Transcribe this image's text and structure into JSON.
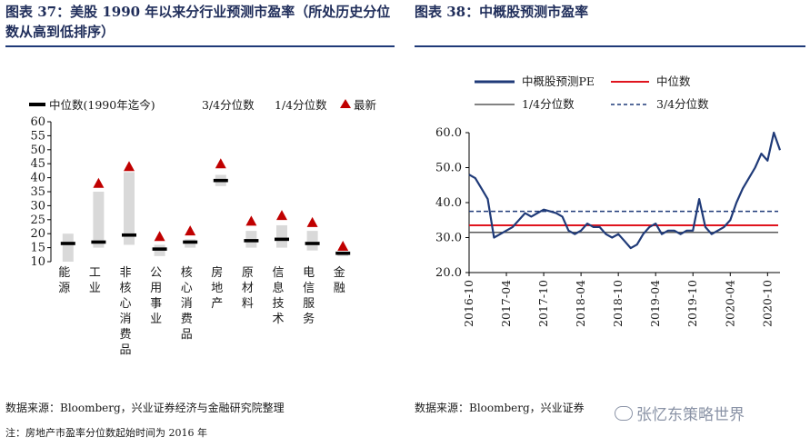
{
  "titles": {
    "left": "图表 37：美股 1990 年以来分行业预测市盈率（所处历史分位数从高到低排序）",
    "right": "图表 38：中概股预测市盈率"
  },
  "sources": {
    "left": "数据来源：Bloomberg，兴业证券经济与金融研究院整理",
    "right": "数据来源：Bloomberg，兴业证券",
    "note": "注：房地产市盈率分位数起始时间为 2016 年",
    "watermark": "张忆东策略世界"
  },
  "colors": {
    "navy": "#1f3a78",
    "red": "#e0141e",
    "gray_band": "#d9d9d9",
    "median_mark": "#000000"
  },
  "chart_data": [
    {
      "type": "bar",
      "subtype": "range-band",
      "legend": {
        "median": "中位数(1990年迄今)",
        "p75": "3/4分位数",
        "p25": "1/4分位数",
        "latest": "最新"
      },
      "legend_position": "top",
      "ylim": [
        10,
        60
      ],
      "yticks": [
        10,
        15,
        20,
        25,
        30,
        35,
        40,
        45,
        50,
        55,
        60
      ],
      "categories": [
        "能源",
        "工业",
        "非核心消费品",
        "公用事业",
        "核心消费品",
        "房地产",
        "原材料",
        "信息技术",
        "电信服务",
        "金融"
      ],
      "p25": [
        10,
        15,
        16,
        12,
        15,
        37,
        15,
        15,
        14,
        12
      ],
      "p75": [
        20,
        35,
        42,
        16,
        18,
        41,
        21,
        23,
        21,
        13
      ],
      "median": [
        16.5,
        17,
        19.5,
        14.5,
        17,
        39,
        17.5,
        18,
        16.5,
        13
      ],
      "latest": [
        null,
        38,
        44,
        19,
        21,
        45,
        24.5,
        26.5,
        24,
        15.5
      ]
    },
    {
      "type": "line",
      "legend_position": "top",
      "ylim": [
        20,
        60
      ],
      "yticks": [
        "20.0",
        "30.0",
        "40.0",
        "50.0",
        "60.0"
      ],
      "x_ticks": [
        "2016-10",
        "2017-04",
        "2017-10",
        "2018-04",
        "2018-10",
        "2019-04",
        "2019-10",
        "2020-04",
        "2020-10"
      ],
      "series": [
        {
          "name": "中概股预测PE",
          "color": "#1f3a78",
          "style": "solid",
          "points": [
            [
              "2016-10",
              48
            ],
            [
              "2016-11",
              47
            ],
            [
              "2016-12",
              44
            ],
            [
              "2017-01",
              41
            ],
            [
              "2017-02",
              30
            ],
            [
              "2017-03",
              31
            ],
            [
              "2017-04",
              32
            ],
            [
              "2017-05",
              33
            ],
            [
              "2017-06",
              35
            ],
            [
              "2017-07",
              37
            ],
            [
              "2017-08",
              36
            ],
            [
              "2017-09",
              37
            ],
            [
              "2017-10",
              38
            ],
            [
              "2017-11",
              37.5
            ],
            [
              "2017-12",
              37
            ],
            [
              "2018-01",
              36
            ],
            [
              "2018-02",
              32
            ],
            [
              "2018-03",
              31
            ],
            [
              "2018-04",
              32
            ],
            [
              "2018-05",
              34
            ],
            [
              "2018-06",
              33
            ],
            [
              "2018-07",
              33
            ],
            [
              "2018-08",
              31
            ],
            [
              "2018-09",
              30
            ],
            [
              "2018-10",
              31
            ],
            [
              "2018-11",
              29
            ],
            [
              "2018-12",
              27
            ],
            [
              "2019-01",
              28
            ],
            [
              "2019-02",
              31
            ],
            [
              "2019-03",
              33
            ],
            [
              "2019-04",
              34
            ],
            [
              "2019-05",
              31
            ],
            [
              "2019-06",
              32
            ],
            [
              "2019-07",
              32
            ],
            [
              "2019-08",
              31
            ],
            [
              "2019-09",
              32
            ],
            [
              "2019-10",
              32
            ],
            [
              "2019-11",
              41
            ],
            [
              "2019-12",
              33
            ],
            [
              "2020-01",
              31
            ],
            [
              "2020-02",
              32
            ],
            [
              "2020-03",
              33
            ],
            [
              "2020-04",
              35
            ],
            [
              "2020-05",
              40
            ],
            [
              "2020-06",
              44
            ],
            [
              "2020-07",
              47
            ],
            [
              "2020-08",
              50
            ],
            [
              "2020-09",
              54
            ],
            [
              "2020-10",
              52
            ],
            [
              "2020-11",
              60
            ],
            [
              "2020-12",
              55
            ]
          ]
        },
        {
          "name": "中位数",
          "color": "#e0141e",
          "style": "solid",
          "value": 33.5
        },
        {
          "name": "1/4分位数",
          "color": "#595959",
          "style": "solid",
          "value": 31.5
        },
        {
          "name": "3/4分位数",
          "color": "#1f3a78",
          "style": "dashed",
          "value": 37.5
        }
      ]
    }
  ]
}
